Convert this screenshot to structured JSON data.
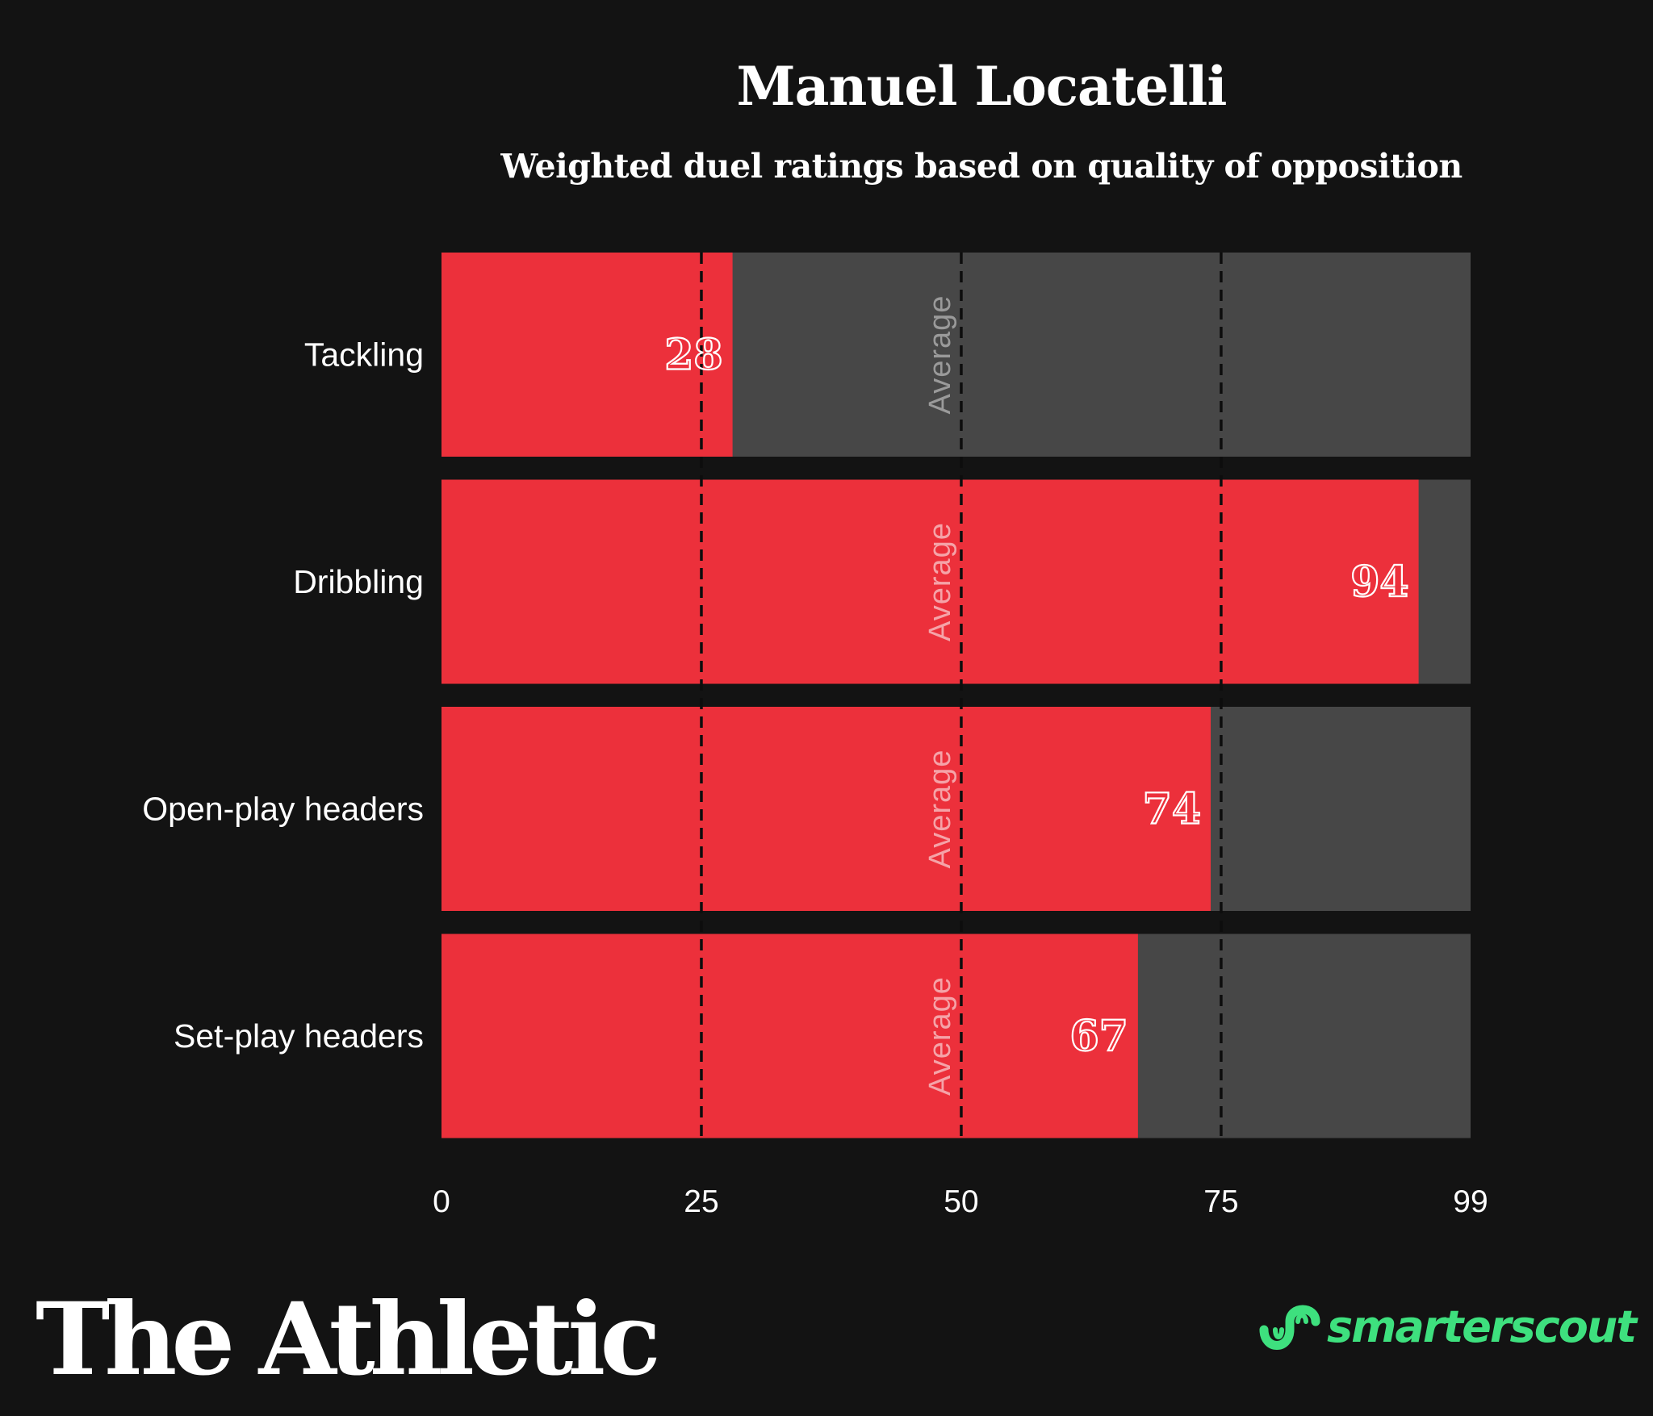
{
  "header": {
    "title": "Manuel Locatelli",
    "subtitle": "Weighted duel ratings based on quality of opposition"
  },
  "chart_data": {
    "type": "bar",
    "orientation": "horizontal",
    "categories": [
      "Tackling",
      "Dribbling",
      "Open-play headers",
      "Set-play headers"
    ],
    "values": [
      28,
      94,
      74,
      67
    ],
    "xlim": [
      0,
      99
    ],
    "xticks": [
      0,
      25,
      50,
      75,
      99
    ],
    "xtick_labels": [
      "0",
      "25",
      "50",
      "75",
      "99"
    ],
    "reference_lines": [
      25,
      50,
      75
    ],
    "reference_label": "Average",
    "reference_label_at": 50,
    "title": "Manuel Locatelli",
    "subtitle": "Weighted duel ratings based on quality of opposition",
    "xlabel": "",
    "ylabel": "",
    "grid": false,
    "colors": {
      "bar": "#ec303b",
      "track": "#474747",
      "background": "#131313",
      "text": "#ffffff",
      "avg_on_track": "#9a9a9a",
      "avg_on_bar": "#f5a3a8"
    }
  },
  "footer": {
    "publisher": "The Athletic",
    "source": "smarterscout",
    "source_color": "#3ee07e"
  }
}
